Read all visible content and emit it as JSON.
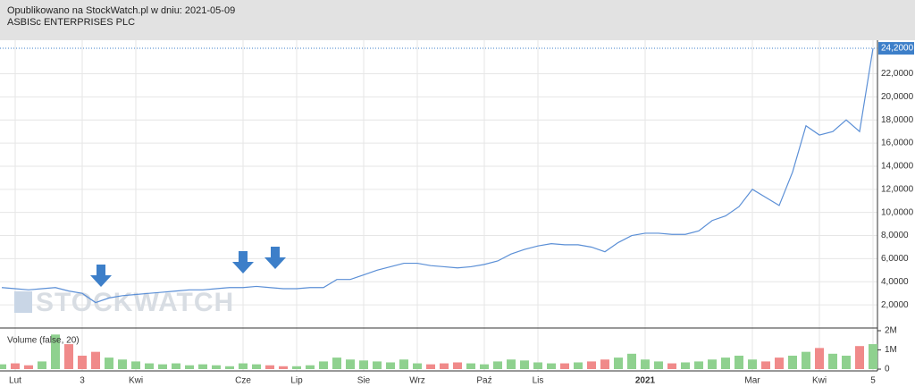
{
  "header": {
    "published": "Opublikowano na StockWatch.pl w dniu: 2021-05-09",
    "company": "ASBISc ENTERPRISES PLC"
  },
  "watermark": "STOCKWATCH",
  "chart_data": {
    "type": "line",
    "categories": [
      null,
      "Lut",
      null,
      null,
      null,
      null,
      "3",
      null,
      null,
      null,
      "Kwi",
      null,
      null,
      null,
      null,
      null,
      null,
      null,
      "Cze",
      null,
      null,
      null,
      "Lip",
      null,
      null,
      null,
      null,
      "Sie",
      null,
      null,
      null,
      "Wrz",
      null,
      null,
      null,
      null,
      "Paź",
      null,
      null,
      null,
      "Lis",
      null,
      null,
      null,
      null,
      null,
      null,
      null,
      "2021",
      null,
      null,
      null,
      null,
      null,
      null,
      null,
      "Mar",
      null,
      null,
      null,
      null,
      "Kwi",
      null,
      null,
      null,
      "5"
    ],
    "bold_categories": [
      48
    ],
    "series": [
      {
        "color": "#5b8fd6",
        "values": [
          3.5,
          3.4,
          3.3,
          3.4,
          3.5,
          3.2,
          3.0,
          2.2,
          2.6,
          2.8,
          2.9,
          3.0,
          3.1,
          3.2,
          3.3,
          3.3,
          3.4,
          3.5,
          3.5,
          3.6,
          3.5,
          3.4,
          3.4,
          3.5,
          3.5,
          4.2,
          4.2,
          4.6,
          5.0,
          5.3,
          5.6,
          5.6,
          5.4,
          5.3,
          5.2,
          5.3,
          5.5,
          5.8,
          6.4,
          6.8,
          7.1,
          7.3,
          7.2,
          7.2,
          7.0,
          6.6,
          7.4,
          8.0,
          8.2,
          8.2,
          8.1,
          8.1,
          8.4,
          9.3,
          9.7,
          10.5,
          12.0,
          11.3,
          10.6,
          13.5,
          17.5,
          16.7,
          17.0,
          18.0,
          17.0,
          24.2
        ]
      }
    ],
    "ylim": [
      0,
      24.9
    ],
    "yticks": [
      {
        "value": 2,
        "label": "2,0000"
      },
      {
        "value": 4,
        "label": "4,0000"
      },
      {
        "value": 6,
        "label": "6,0000"
      },
      {
        "value": 8,
        "label": "8,0000"
      },
      {
        "value": 10,
        "label": "10,0000"
      },
      {
        "value": 12,
        "label": "12,0000"
      },
      {
        "value": 14,
        "label": "14,0000"
      },
      {
        "value": 16,
        "label": "16,0000"
      },
      {
        "value": 18,
        "label": "18,0000"
      },
      {
        "value": 20,
        "label": "20,0000"
      },
      {
        "value": 22,
        "label": "22,0000"
      }
    ],
    "last_price": {
      "value": 24.2,
      "label": "24,2000"
    },
    "grid": true,
    "volume": {
      "title": "Volume (false, 20)",
      "up_color": "#8fd18f",
      "down_color": "#f08a8a",
      "values": [
        250000,
        300000,
        200000,
        400000,
        1800000,
        1300000,
        700000,
        900000,
        600000,
        500000,
        400000,
        300000,
        250000,
        300000,
        200000,
        250000,
        200000,
        150000,
        300000,
        250000,
        200000,
        150000,
        150000,
        200000,
        400000,
        600000,
        500000,
        450000,
        400000,
        350000,
        500000,
        300000,
        250000,
        300000,
        350000,
        300000,
        250000,
        400000,
        500000,
        450000,
        350000,
        300000,
        300000,
        350000,
        400000,
        500000,
        600000,
        800000,
        500000,
        400000,
        300000,
        350000,
        400000,
        500000,
        600000,
        700000,
        500000,
        400000,
        600000,
        700000,
        900000,
        1100000,
        800000,
        700000,
        1200000,
        1300000
      ],
      "ylim": [
        0,
        2000000
      ],
      "yticks": [
        0,
        {
          "value": 1000000,
          "label": "1M"
        },
        {
          "value": 2000000,
          "label": "2M"
        }
      ]
    }
  }
}
